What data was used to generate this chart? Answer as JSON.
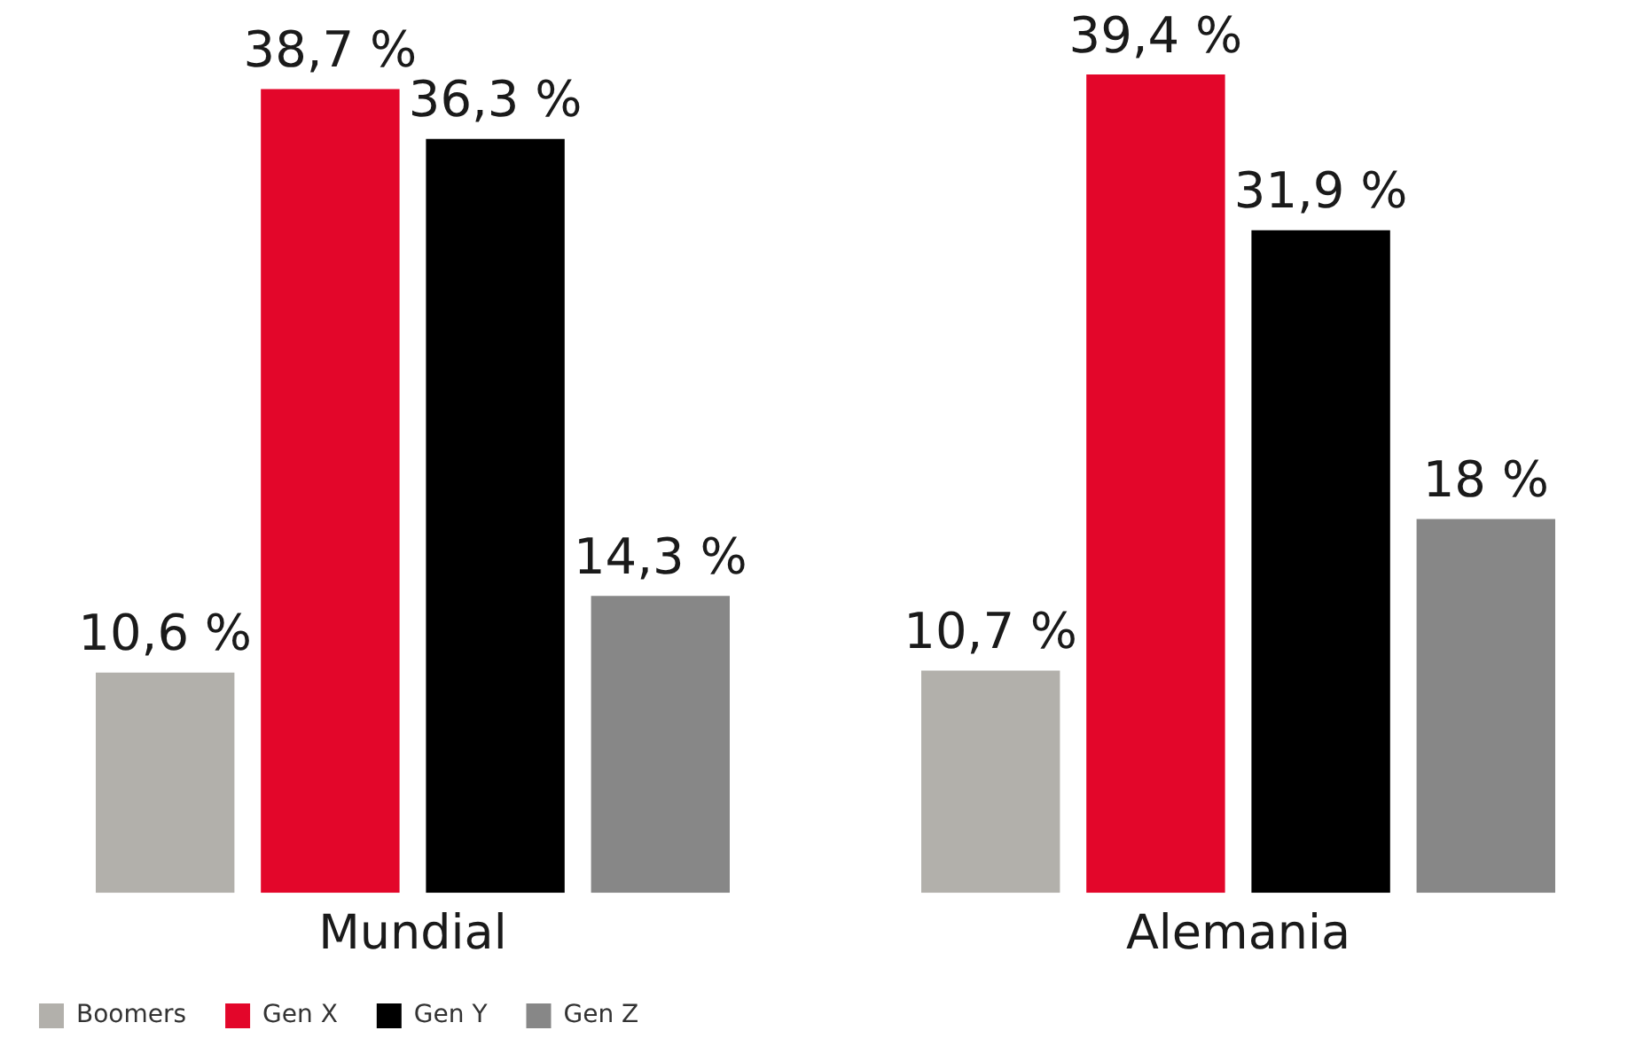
{
  "chart_data": {
    "type": "bar",
    "categories": [
      "Mundial",
      "Alemania"
    ],
    "series": [
      {
        "name": "Boomers",
        "color": "#b2b0ab",
        "values": [
          10.6,
          10.7
        ],
        "value_labels": [
          "10,6 %",
          "10,7 %"
        ]
      },
      {
        "name": "Gen X",
        "color": "#e3062a",
        "values": [
          38.7,
          39.4
        ],
        "value_labels": [
          "38,7 %",
          "39,4 %"
        ]
      },
      {
        "name": "Gen Y",
        "color": "#000000",
        "values": [
          36.3,
          31.9
        ],
        "value_labels": [
          "36,3 %",
          "31,9 %"
        ]
      },
      {
        "name": "Gen Z",
        "color": "#878787",
        "values": [
          14.3,
          18
        ],
        "value_labels": [
          "14,3 %",
          "18 %"
        ]
      }
    ],
    "legend": "bottom left",
    "grid": false
  }
}
